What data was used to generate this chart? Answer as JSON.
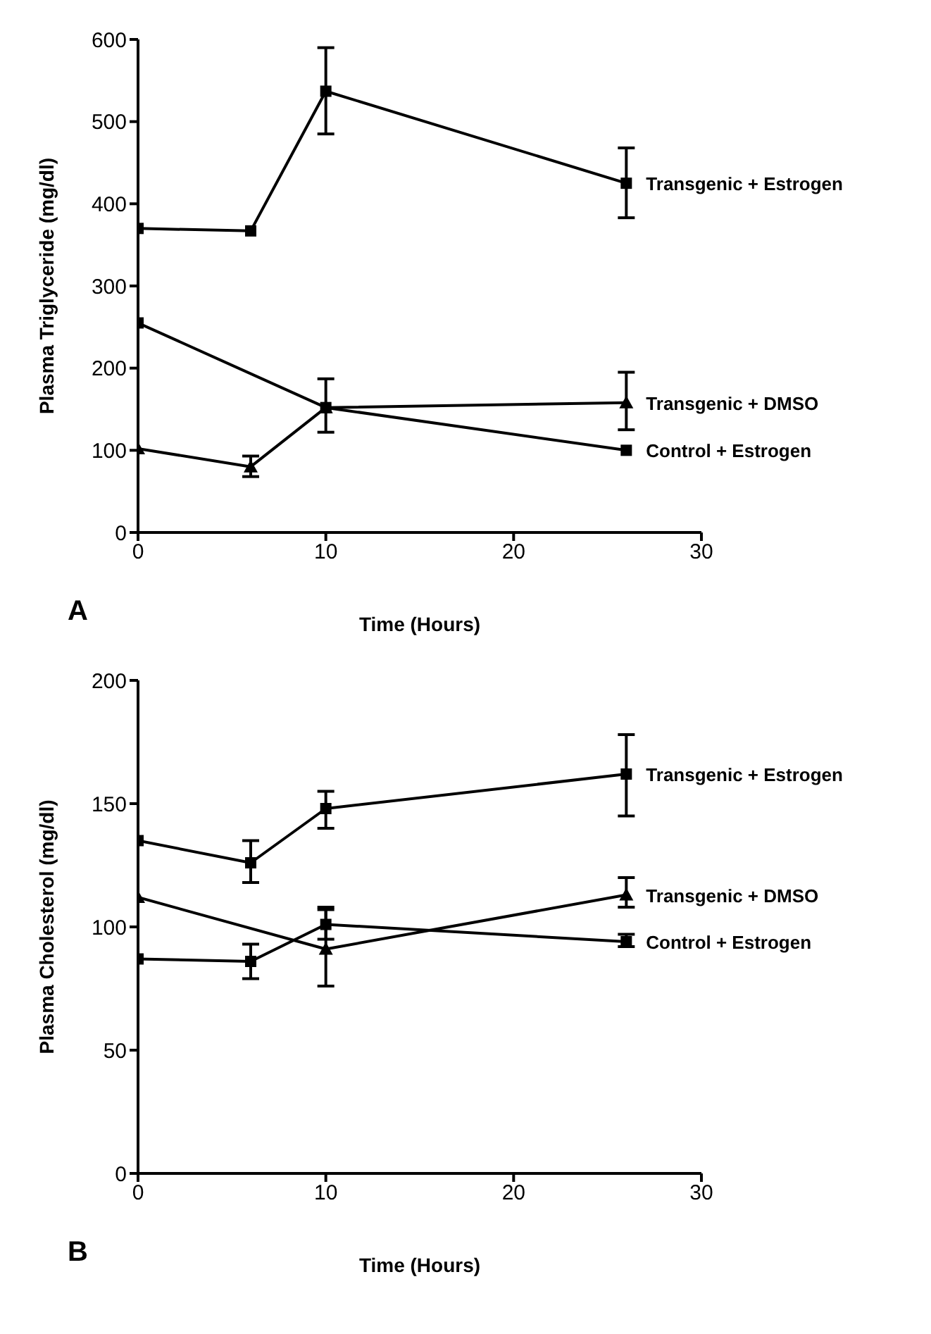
{
  "chart_data": [
    {
      "type": "line",
      "xlabel": "Time (Hours)",
      "ylabel": "Plasma Triglyceride (mg/dl)",
      "xlim": [
        0,
        30
      ],
      "xticks": [
        0,
        10,
        20,
        30
      ],
      "ylim": [
        0,
        600
      ],
      "yticks": [
        0,
        100,
        200,
        300,
        400,
        500,
        600
      ],
      "grid": false,
      "legend": false,
      "annotations": [
        "A"
      ],
      "series": [
        {
          "name": "Transgenic + Estrogen",
          "color": "#000000",
          "marker": "square",
          "x": [
            0,
            6,
            10,
            26
          ],
          "values": [
            370,
            367,
            537,
            425
          ],
          "errors": [
            null,
            null,
            [
              485,
              590
            ],
            [
              383,
              468
            ]
          ]
        },
        {
          "name": "Transgenic + DMSO",
          "color": "#000000",
          "marker": "triangle",
          "x": [
            0,
            6,
            10,
            26
          ],
          "values": [
            102,
            80,
            152,
            158
          ],
          "errors": [
            null,
            [
              68,
              93
            ],
            [
              122,
              187
            ],
            [
              125,
              195
            ]
          ]
        },
        {
          "name": "Control + Estrogen",
          "color": "#000000",
          "marker": "square",
          "x": [
            0,
            10,
            26
          ],
          "values": [
            255,
            152,
            100
          ],
          "errors": [
            null,
            null,
            null
          ]
        }
      ]
    },
    {
      "type": "line",
      "xlabel": "Time (Hours)",
      "ylabel": "Plasma Cholesterol (mg/dl)",
      "xlim": [
        0,
        30
      ],
      "xticks": [
        0,
        10,
        20,
        30
      ],
      "ylim": [
        0,
        200
      ],
      "yticks": [
        0,
        50,
        100,
        150,
        200
      ],
      "grid": false,
      "legend": false,
      "annotations": [
        "B"
      ],
      "series": [
        {
          "name": "Transgenic + Estrogen",
          "color": "#000000",
          "marker": "square",
          "x": [
            0,
            6,
            10,
            26
          ],
          "values": [
            135,
            126,
            148,
            162
          ],
          "errors": [
            null,
            [
              118,
              135
            ],
            [
              140,
              155
            ],
            [
              145,
              178
            ]
          ]
        },
        {
          "name": "Transgenic + DMSO",
          "color": "#000000",
          "marker": "triangle",
          "x": [
            0,
            10,
            26
          ],
          "values": [
            112,
            91,
            113
          ],
          "errors": [
            null,
            [
              76,
              107
            ],
            [
              108,
              120
            ]
          ]
        },
        {
          "name": "Control + Estrogen",
          "color": "#000000",
          "marker": "square",
          "x": [
            0,
            6,
            10,
            26
          ],
          "values": [
            87,
            86,
            101,
            94
          ],
          "errors": [
            null,
            [
              79,
              93
            ],
            [
              95,
              108
            ],
            [
              92,
              97
            ]
          ]
        }
      ]
    }
  ]
}
